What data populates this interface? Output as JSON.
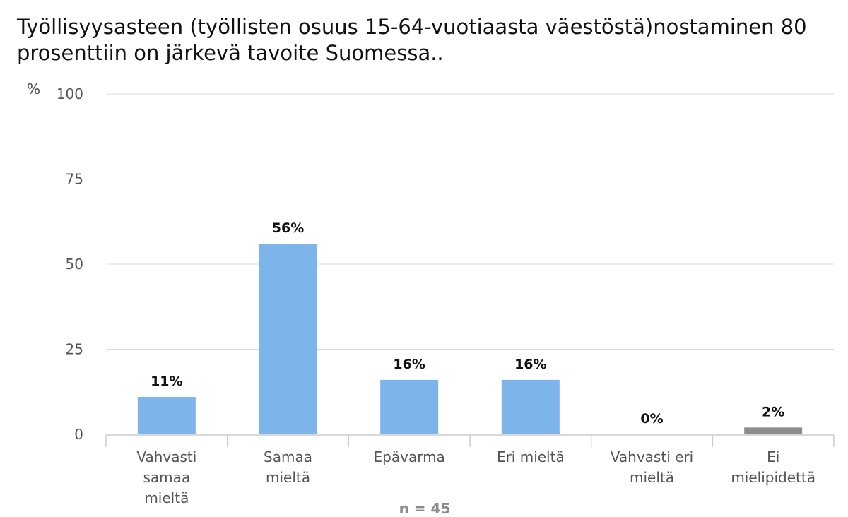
{
  "chart_data": {
    "type": "bar",
    "title": "Työllisyysasteen (työllisten osuus 15-64-vuotiaasta väestöstä)nostaminen 80 prosenttiin on järkevä tavoite Suomessa..",
    "ylabel": "%",
    "ylim": [
      0,
      100
    ],
    "yticks": [
      0,
      25,
      50,
      75,
      100
    ],
    "categories": [
      [
        "Vahvasti",
        "samaa",
        "mieltä"
      ],
      [
        "Samaa",
        "mieltä"
      ],
      [
        "Epävarma"
      ],
      [
        "Eri mieltä"
      ],
      [
        "Vahvasti eri",
        "mieltä"
      ],
      [
        "Ei",
        "mielipidettä"
      ]
    ],
    "values": [
      11,
      56,
      16,
      16,
      0,
      2
    ],
    "data_labels": [
      "11%",
      "56%",
      "16%",
      "16%",
      "0%",
      "2%"
    ],
    "colors": [
      "#7db4ea",
      "#7db4ea",
      "#7db4ea",
      "#7db4ea",
      "#7db4ea",
      "#8c8c8c"
    ],
    "grid": true,
    "legend": "none",
    "footnote": "n = 45"
  }
}
